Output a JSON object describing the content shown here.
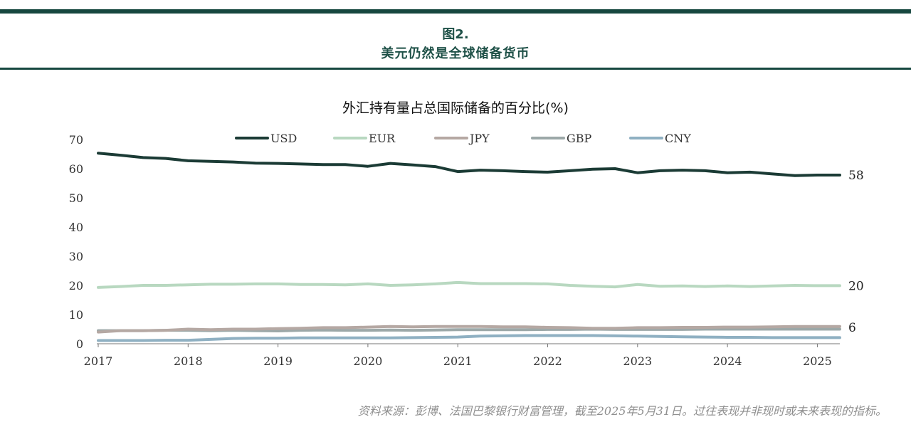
{
  "header": {
    "figure_label": "图2.",
    "figure_title": "美元仍然是全球储备货币"
  },
  "footnote": "资料来源：彭博、法国巴黎银行财富管理，截至2025年5月31日。过往表现并非现时或未来表现的指标。",
  "chart_data": {
    "type": "line",
    "title": "外汇持有量占总国际储备的百分比(%)",
    "xlabel": "",
    "ylabel": "",
    "ylim": [
      0,
      70
    ],
    "xlim": [
      2017,
      2025.25
    ],
    "yticks": [
      "0",
      "10",
      "20",
      "30",
      "40",
      "50",
      "60",
      "70"
    ],
    "xticks": [
      "2017",
      "2018",
      "2019",
      "2020",
      "2021",
      "2022",
      "2023",
      "2024",
      "2025"
    ],
    "grid": false,
    "legend_position": "top",
    "x": [
      2017.0,
      2017.25,
      2017.5,
      2017.75,
      2018.0,
      2018.25,
      2018.5,
      2018.75,
      2019.0,
      2019.25,
      2019.5,
      2019.75,
      2020.0,
      2020.25,
      2020.5,
      2020.75,
      2021.0,
      2021.25,
      2021.5,
      2021.75,
      2022.0,
      2022.25,
      2022.5,
      2022.75,
      2023.0,
      2023.25,
      2023.5,
      2023.75,
      2024.0,
      2024.25,
      2024.5,
      2024.75,
      2025.0,
      2025.25
    ],
    "series": [
      {
        "name": "USD",
        "color": "#1b3b35",
        "values": [
          65.3,
          64.6,
          63.8,
          63.5,
          62.7,
          62.5,
          62.3,
          61.9,
          61.8,
          61.6,
          61.4,
          61.4,
          60.8,
          61.8,
          61.3,
          60.7,
          59.0,
          59.5,
          59.3,
          59.0,
          58.8,
          59.3,
          59.8,
          60.0,
          58.6,
          59.3,
          59.5,
          59.3,
          58.6,
          58.8,
          58.2,
          57.6,
          57.8,
          57.8
        ]
      },
      {
        "name": "EUR",
        "color": "#b8d8c0",
        "values": [
          19.3,
          19.6,
          20.0,
          20.0,
          20.2,
          20.4,
          20.4,
          20.5,
          20.5,
          20.3,
          20.3,
          20.2,
          20.5,
          20.0,
          20.2,
          20.5,
          21.0,
          20.6,
          20.6,
          20.6,
          20.5,
          20.0,
          19.7,
          19.5,
          20.3,
          19.7,
          19.8,
          19.6,
          19.8,
          19.6,
          19.8,
          20.0,
          19.9,
          19.9
        ]
      },
      {
        "name": "JPY",
        "color": "#b5a8a3",
        "values": [
          4.0,
          4.5,
          4.5,
          4.6,
          5.0,
          4.8,
          5.0,
          5.0,
          5.2,
          5.3,
          5.5,
          5.5,
          5.7,
          5.9,
          5.8,
          5.9,
          5.9,
          5.9,
          5.8,
          5.8,
          5.6,
          5.5,
          5.3,
          5.3,
          5.5,
          5.5,
          5.6,
          5.6,
          5.7,
          5.7,
          5.8,
          5.9,
          5.9,
          5.9
        ]
      },
      {
        "name": "GBP",
        "color": "#9ca8a8",
        "values": [
          4.5,
          4.5,
          4.5,
          4.6,
          4.6,
          4.5,
          4.6,
          4.5,
          4.4,
          4.6,
          4.7,
          4.6,
          4.6,
          4.7,
          4.6,
          4.7,
          4.8,
          4.8,
          4.8,
          4.8,
          4.9,
          4.9,
          5.0,
          4.9,
          4.9,
          4.9,
          4.9,
          5.0,
          5.0,
          5.0,
          5.0,
          5.0,
          5.0,
          5.0
        ]
      },
      {
        "name": "CNY",
        "color": "#8fb0c2",
        "values": [
          1.1,
          1.1,
          1.1,
          1.2,
          1.2,
          1.5,
          1.8,
          1.9,
          1.9,
          2.0,
          2.0,
          2.0,
          2.0,
          2.0,
          2.1,
          2.2,
          2.3,
          2.6,
          2.7,
          2.8,
          2.8,
          2.8,
          2.8,
          2.7,
          2.6,
          2.5,
          2.4,
          2.3,
          2.2,
          2.2,
          2.1,
          2.1,
          2.1,
          2.1
        ]
      }
    ],
    "end_labels": [
      "58",
      "20",
      "6"
    ]
  }
}
